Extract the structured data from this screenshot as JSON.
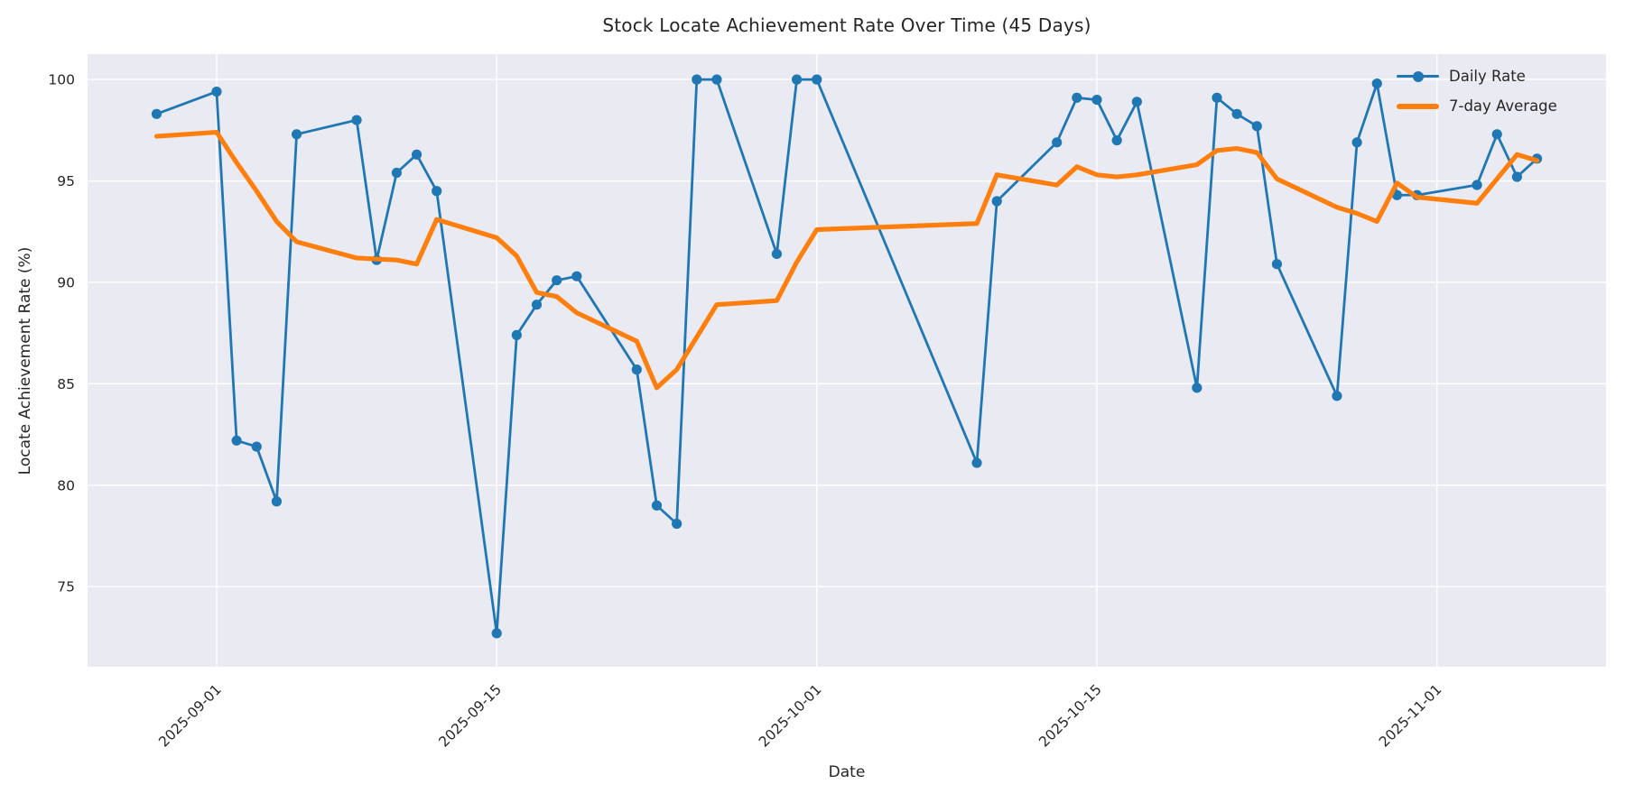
{
  "chart_data": {
    "type": "line",
    "title": "Stock Locate Achievement Rate Over Time (45 Days)",
    "xlabel": "Date",
    "ylabel": "Locate Achievement Rate (%)",
    "x": [
      "2025-08-29",
      "2025-09-01",
      "2025-09-02",
      "2025-09-03",
      "2025-09-04",
      "2025-09-05",
      "2025-09-08",
      "2025-09-09",
      "2025-09-10",
      "2025-09-11",
      "2025-09-12",
      "2025-09-15",
      "2025-09-16",
      "2025-09-17",
      "2025-09-18",
      "2025-09-19",
      "2025-09-22",
      "2025-09-23",
      "2025-09-24",
      "2025-09-25",
      "2025-09-26",
      "2025-09-29",
      "2025-09-30",
      "2025-10-01",
      "2025-10-09",
      "2025-10-10",
      "2025-10-13",
      "2025-10-14",
      "2025-10-15",
      "2025-10-16",
      "2025-10-17",
      "2025-10-20",
      "2025-10-21",
      "2025-10-22",
      "2025-10-23",
      "2025-10-24",
      "2025-10-27",
      "2025-10-28",
      "2025-10-29",
      "2025-10-30",
      "2025-10-31",
      "2025-11-03",
      "2025-11-04",
      "2025-11-05",
      "2025-11-06"
    ],
    "series": [
      {
        "name": "Daily Rate",
        "color": "#1f77b4",
        "marker": "circle",
        "line_width": 2.8,
        "values": [
          98.3,
          99.4,
          82.2,
          81.9,
          79.2,
          97.3,
          98.0,
          91.1,
          95.4,
          96.3,
          94.5,
          72.7,
          87.4,
          88.9,
          90.1,
          90.3,
          85.7,
          79.0,
          78.1,
          100.0,
          100.0,
          91.4,
          100.0,
          100.0,
          81.1,
          94.0,
          96.9,
          99.1,
          99.0,
          97.0,
          98.9,
          84.8,
          99.1,
          98.3,
          97.7,
          90.9,
          84.4,
          96.9,
          99.8,
          94.3,
          94.3,
          94.8,
          97.3,
          95.2,
          96.1
        ]
      },
      {
        "name": "7-day Average",
        "color": "#ff7f0e",
        "marker": "none",
        "line_width": 5.2,
        "values": [
          97.2,
          97.4,
          95.9,
          94.5,
          93.0,
          92.0,
          91.2,
          91.15,
          91.1,
          90.9,
          93.1,
          92.2,
          91.3,
          89.5,
          89.3,
          88.5,
          87.1,
          84.8,
          85.7,
          87.3,
          88.9,
          89.1,
          91.0,
          92.6,
          92.9,
          95.3,
          94.8,
          95.7,
          95.3,
          95.2,
          95.3,
          95.8,
          96.5,
          96.6,
          96.4,
          95.1,
          93.7,
          93.4,
          93.0,
          94.9,
          94.2,
          93.9,
          95.1,
          96.3,
          96.0
        ]
      }
    ],
    "yticks": [
      75,
      80,
      85,
      90,
      95,
      100
    ],
    "xticks": [
      "2025-09-01",
      "2025-09-15",
      "2025-10-01",
      "2025-10-15",
      "2025-11-01"
    ],
    "ylim": [
      71.05,
      101.25
    ],
    "x_margin_days": 3.45,
    "grid": true,
    "legend_position": "upper right",
    "colors": {
      "plot_background": "#eaeaf2",
      "grid": "#ffffff",
      "text": "#262626",
      "daily": "#1f77b4",
      "average": "#ff7f0e"
    }
  },
  "legend": {
    "items": [
      {
        "label": "Daily Rate"
      },
      {
        "label": "7-day Average"
      }
    ]
  }
}
